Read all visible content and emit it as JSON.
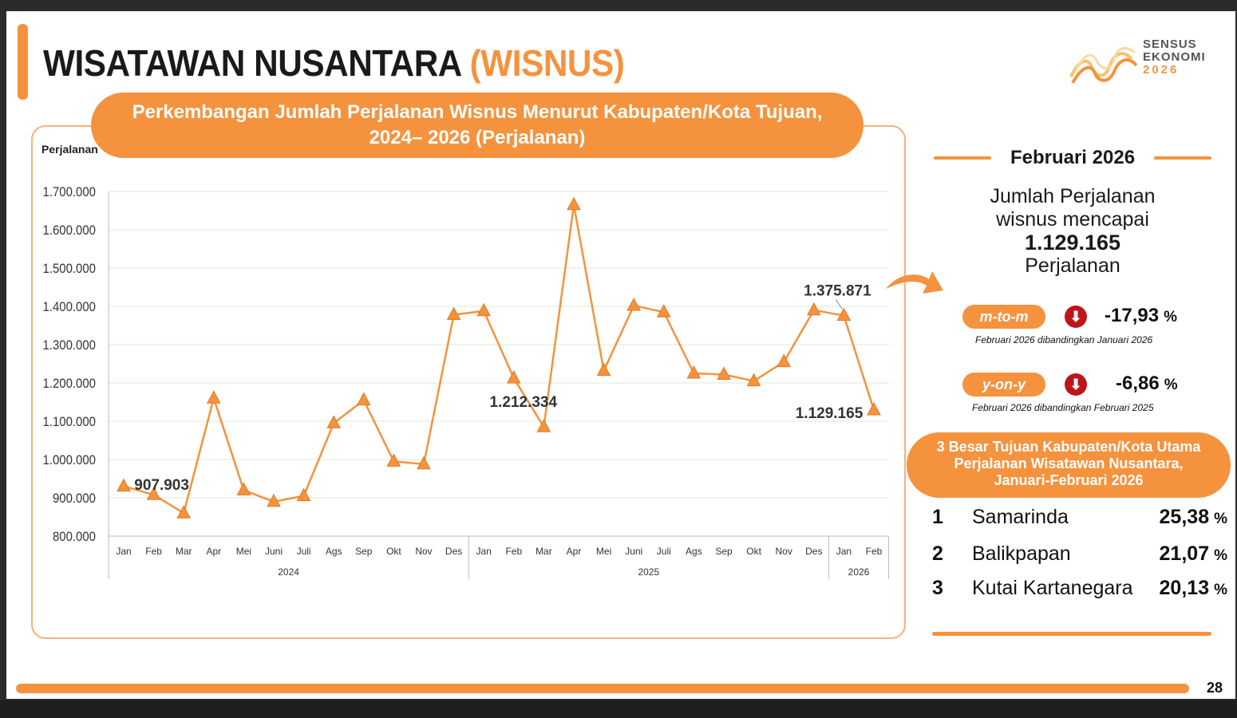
{
  "header": {
    "title_main": "WISATAWAN NUSANTARA",
    "title_accent": "(WISNUS)",
    "logo_line1": "SENSUS",
    "logo_line2": "EKONOMI",
    "logo_line3": "2026"
  },
  "chart_title_line1": "Perkembangan Jumlah Perjalanan Wisnus Menurut Kabupaten/Kota Tujuan,",
  "chart_title_line2": "2024– 2026 (Perjalanan)",
  "chart_data": {
    "type": "line",
    "ylabel": "Perjalanan",
    "ylim": [
      800000,
      1700000
    ],
    "yticks": [
      "800.000",
      "900.000",
      "1.000.000",
      "1.100.000",
      "1.200.000",
      "1.300.000",
      "1.400.000",
      "1.500.000",
      "1.600.000",
      "1.700.000"
    ],
    "grid": true,
    "color": "#F5923E",
    "categories": [
      "Jan",
      "Feb",
      "Mar",
      "Apr",
      "Mei",
      "Juni",
      "Juli",
      "Ags",
      "Sep",
      "Okt",
      "Nov",
      "Des",
      "Jan",
      "Feb",
      "Mar",
      "Apr",
      "Mei",
      "Juni",
      "Juli",
      "Ags",
      "Sep",
      "Okt",
      "Nov",
      "Des",
      "Jan",
      "Feb"
    ],
    "years": [
      {
        "label": "2024",
        "count": 12
      },
      {
        "label": "2025",
        "count": 12
      },
      {
        "label": "2026",
        "count": 2
      }
    ],
    "values": [
      930000,
      907903,
      860000,
      1160000,
      920000,
      890000,
      905000,
      1095000,
      1155000,
      995000,
      988000,
      1378000,
      1388000,
      1212334,
      1085000,
      1665000,
      1232000,
      1402000,
      1385000,
      1225000,
      1222000,
      1205000,
      1255000,
      1390000,
      1375871,
      1129165
    ],
    "annotations": [
      {
        "index": 1,
        "label": "907.903"
      },
      {
        "index": 13,
        "label": "1.212.334"
      },
      {
        "index": 24,
        "label": "1.375.871"
      },
      {
        "index": 25,
        "label": "1.129.165"
      }
    ]
  },
  "side": {
    "period": "Februari 2026",
    "line1": "Jumlah Perjalanan",
    "line2": "wisnus mencapai",
    "value": "1.129.165",
    "unit": "Perjalanan",
    "mtom": {
      "label": "m-to-m",
      "value": "-17,93",
      "unit": "%",
      "note": "Februari 2026 dibandingkan Januari 2026"
    },
    "yony": {
      "label": "y-on-y",
      "value": "-6,86",
      "unit": "%",
      "note": "Februari 2026 dibandingkan Februari 2025"
    },
    "down_icon": "arrow-down-circle-icon",
    "top3_title_line1": "3 Besar Tujuan Kabupaten/Kota Utama",
    "top3_title_line2": "Perjalanan Wisatawan Nusantara,",
    "top3_title_line3": "Januari-Februari 2026",
    "top3": [
      {
        "rank": "1",
        "city": "Samarinda",
        "value": "25,38",
        "unit": "%"
      },
      {
        "rank": "2",
        "city": "Balikpapan",
        "value": "21,07",
        "unit": "%"
      },
      {
        "rank": "3",
        "city": "Kutai Kartanegara",
        "value": "20,13",
        "unit": "%"
      }
    ]
  },
  "page_number": "28"
}
